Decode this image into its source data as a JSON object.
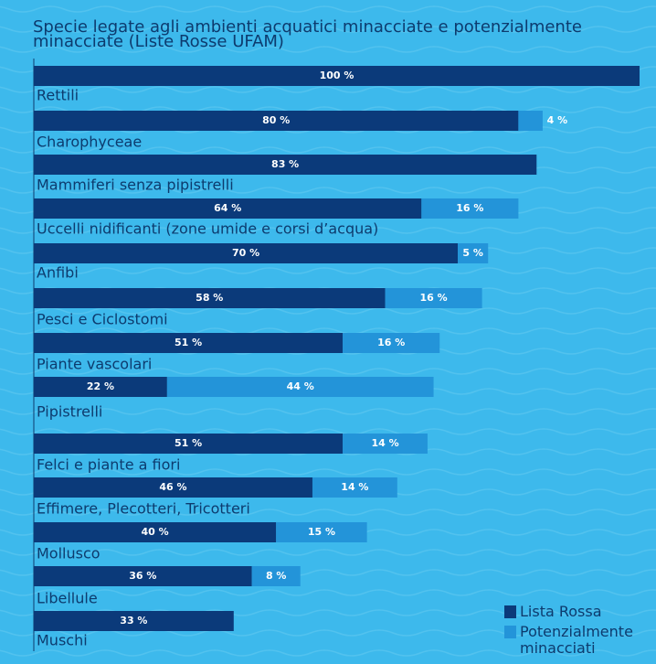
{
  "chart_data": {
    "type": "stacked-bar",
    "orientation": "horizontal",
    "title": "Specie legate agli ambienti acquatici minacciate e potenzialmente minacciate (Liste Rosse UFAM)",
    "categories": [
      "Rettili",
      "Charophyceae",
      "Mammiferi senza pipistrelli",
      "Uccelli nidificanti (zone umide e corsi d’acqua)",
      "Anfibi",
      "Pesci e Ciclostomi",
      "Piante vascolari",
      "Pipistrelli",
      "Felci e piante a fiori",
      "Effimere, Plecotteri, Tricotteri",
      "Mollusco",
      "Libellule",
      "Muschi"
    ],
    "xlim": [
      0,
      100
    ],
    "series": [
      {
        "name": "Lista Rossa",
        "color": "#0b3a7a",
        "values": [
          100,
          80,
          83,
          64,
          70,
          58,
          51,
          22,
          51,
          46,
          40,
          36,
          33
        ],
        "value_labels": [
          "100 %",
          "80 %",
          "83 %",
          "64 %",
          "70 %",
          "58 %",
          "51 %",
          "22 %",
          "51 %",
          "46 %",
          "40 %",
          "36 %",
          "33 %"
        ]
      },
      {
        "name": "Potenzialmente minacciati",
        "color": "#2394d9",
        "values": [
          null,
          4,
          null,
          16,
          5,
          16,
          16,
          44,
          14,
          14,
          15,
          8,
          null
        ],
        "value_labels": [
          null,
          "4 %",
          null,
          "16 %",
          "5 %",
          "16 %",
          "16 %",
          "44 %",
          "14 %",
          "14 %",
          "15 %",
          "8 %",
          null
        ]
      }
    ]
  }
}
